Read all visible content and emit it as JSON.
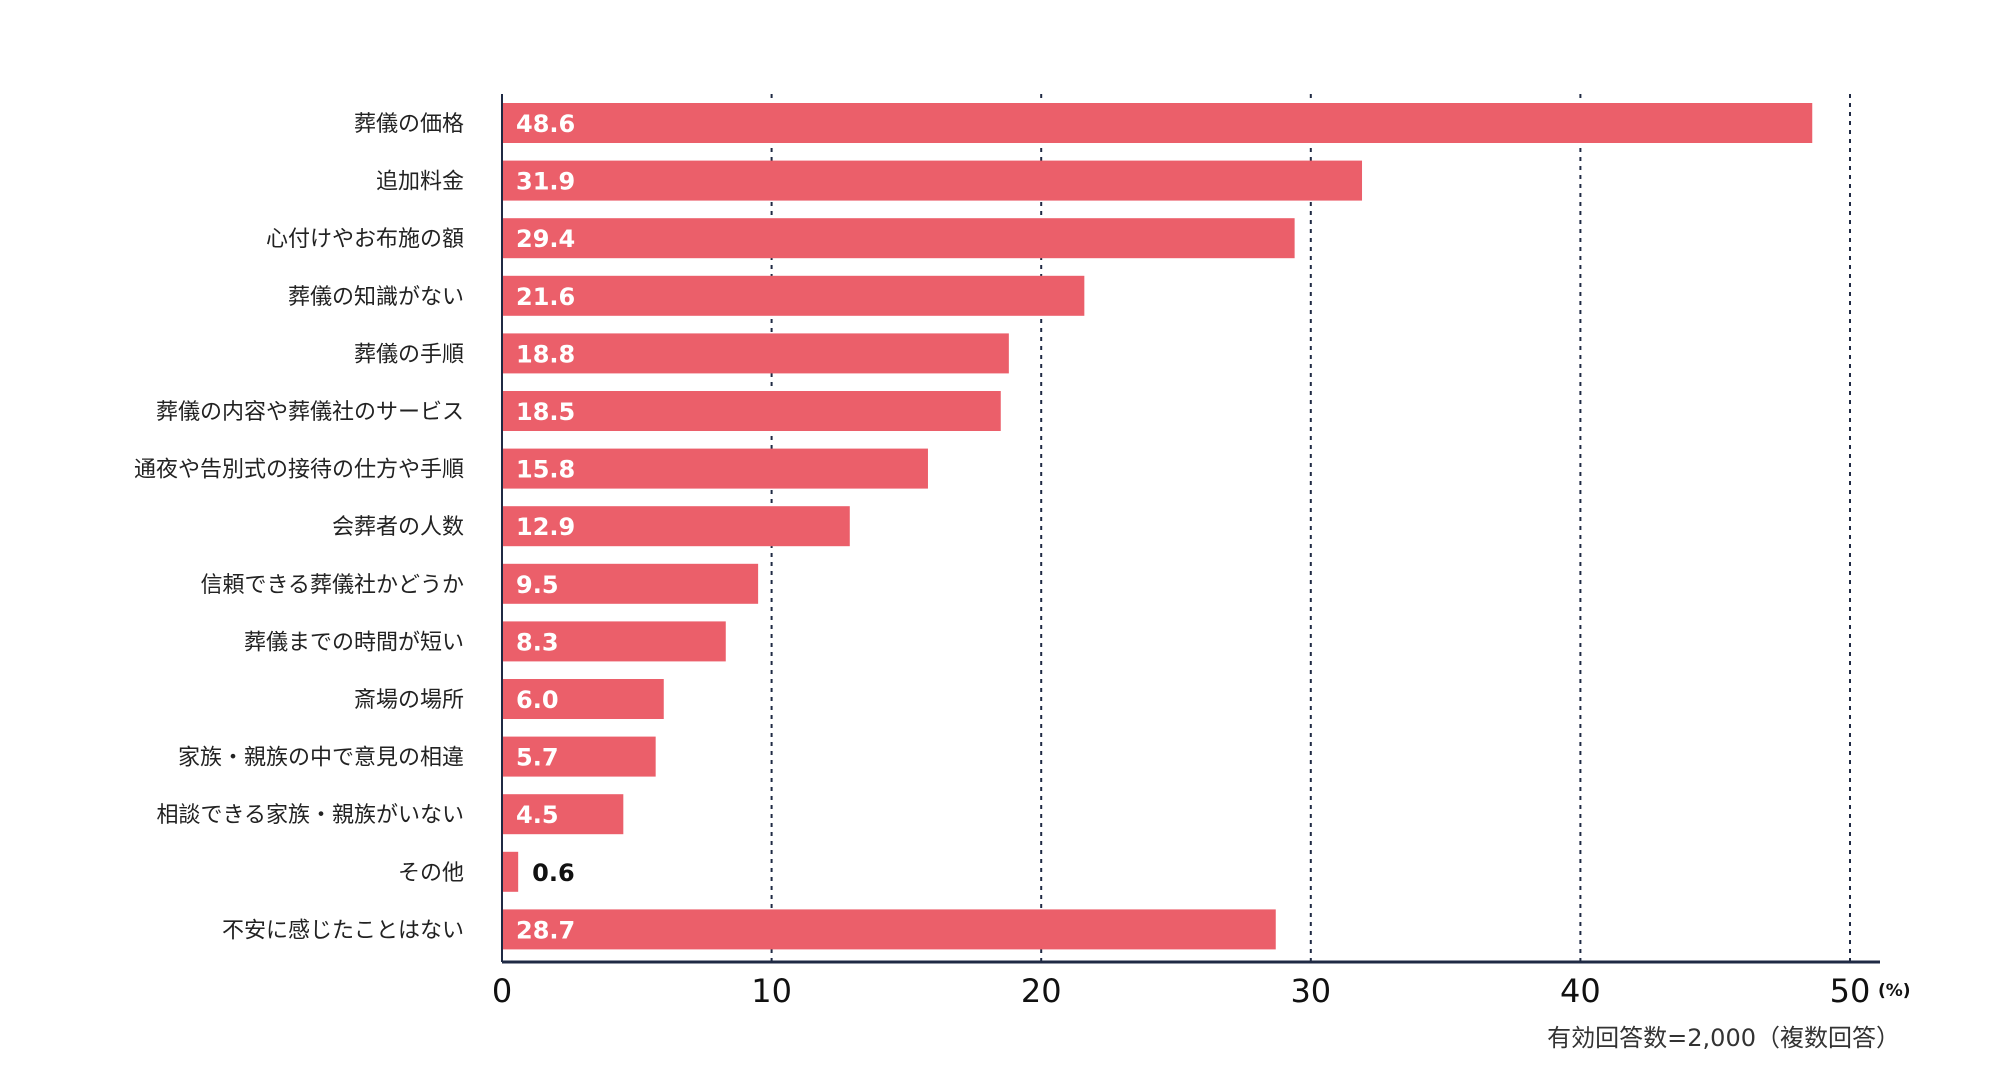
{
  "chart_data": {
    "type": "bar",
    "orientation": "horizontal",
    "categories": [
      "葬儀の価格",
      "追加料金",
      "心付けやお布施の額",
      "葬儀の知識がない",
      "葬儀の手順",
      "葬儀の内容や葬儀社のサービス",
      "通夜や告別式の接待の仕方や手順",
      "会葬者の人数",
      "信頼できる葬儀社かどうか",
      "葬儀までの時間が短い",
      "斎場の場所",
      "家族・親族の中で意見の相違",
      "相談できる家族・親族がいない",
      "その他",
      "不安に感じたことはない"
    ],
    "values": [
      48.6,
      31.9,
      29.4,
      21.6,
      18.8,
      18.5,
      15.8,
      12.9,
      9.5,
      8.3,
      6.0,
      5.7,
      4.5,
      0.6,
      28.7
    ],
    "value_labels": [
      "48.6",
      "31.9",
      "29.4",
      "21.6",
      "18.8",
      "18.5",
      "15.8",
      "12.9",
      "9.5",
      "8.3",
      "6.0",
      "5.7",
      "4.5",
      "0.6",
      "28.7"
    ],
    "xlim": [
      0,
      50
    ],
    "xticks": [
      0,
      10,
      20,
      30,
      40,
      50
    ],
    "xtick_labels": [
      "0",
      "10",
      "20",
      "30",
      "40",
      "50"
    ],
    "x_unit": "(%)",
    "note": "有効回答数=2,000（複数回答）",
    "grid": "vertical dotted",
    "bar_color": "#eb5f6a",
    "axis_color": "#1f2a44",
    "grid_color": "#1f2a44",
    "title": "",
    "xlabel": "",
    "ylabel": ""
  }
}
